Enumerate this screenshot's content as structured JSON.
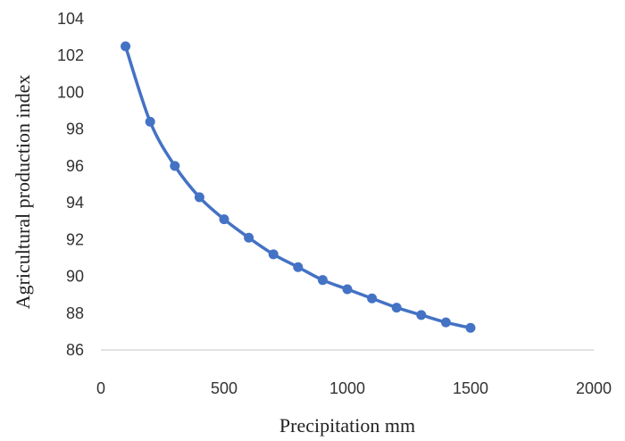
{
  "chart_data": {
    "type": "line",
    "title": "",
    "xlabel": "Precipitation mm",
    "ylabel": "Agricultural production index",
    "xlim": [
      0,
      2000
    ],
    "ylim": [
      86,
      104
    ],
    "x_ticks": [
      0,
      500,
      1000,
      1500,
      2000
    ],
    "y_ticks": [
      86,
      88,
      90,
      92,
      94,
      96,
      98,
      100,
      102,
      104
    ],
    "grid": false,
    "legend": "none",
    "colors": {
      "series": "#4472C4",
      "axis": "#d9d9d9"
    },
    "series": [
      {
        "x": [
          100,
          200,
          300,
          400,
          500,
          600,
          700,
          800,
          900,
          1000,
          1100,
          1200,
          1300,
          1400,
          1500
        ],
        "y": [
          102.5,
          98.4,
          96.0,
          94.3,
          93.1,
          92.1,
          91.2,
          90.5,
          89.8,
          89.3,
          88.8,
          88.3,
          87.9,
          87.5,
          87.2
        ]
      }
    ]
  }
}
